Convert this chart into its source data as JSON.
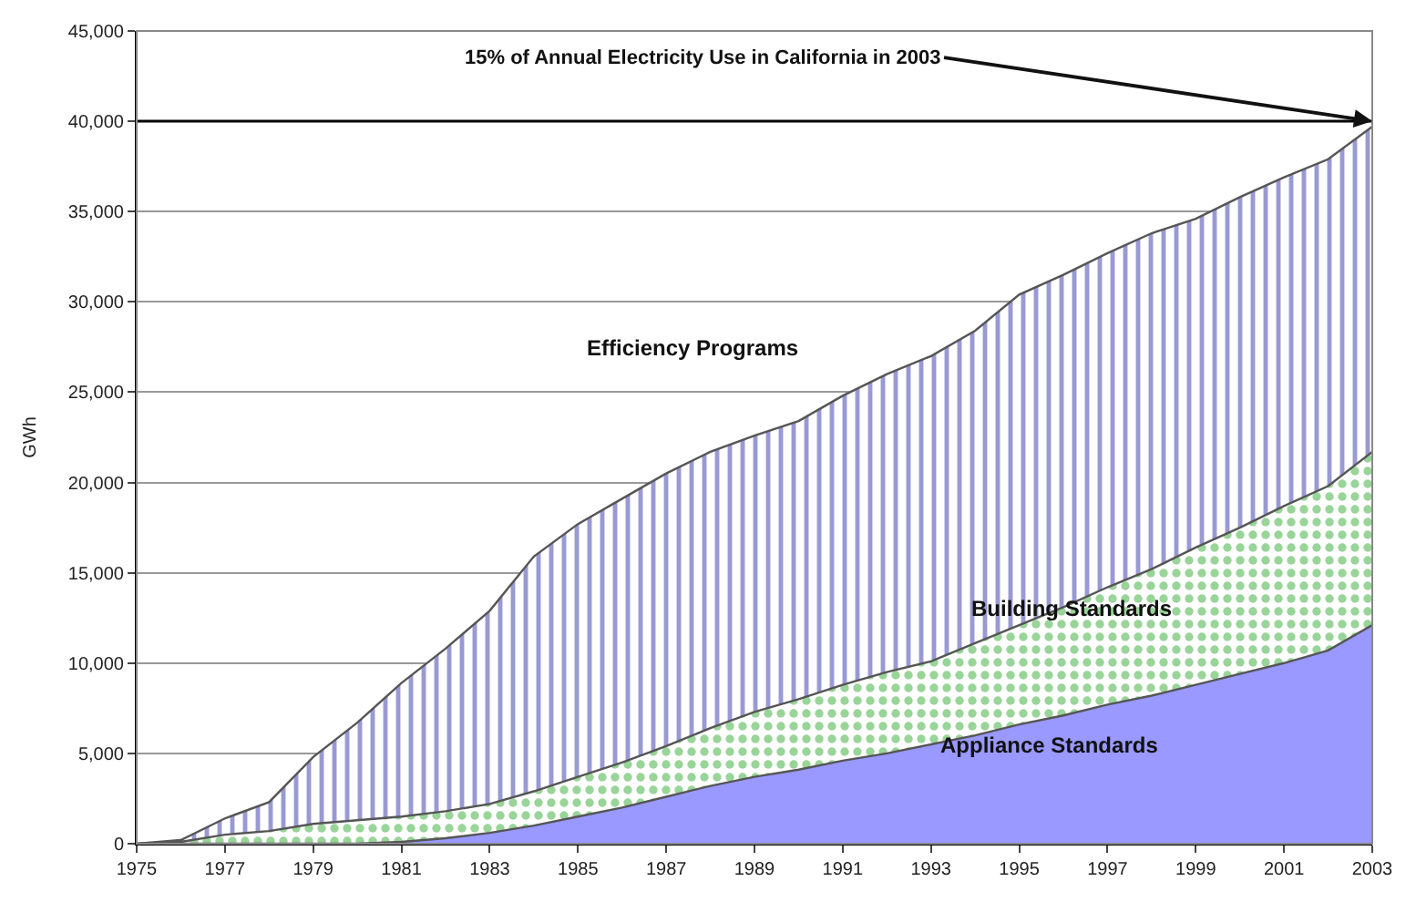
{
  "chart_data": {
    "type": "area",
    "stacked": true,
    "ylabel": "GWh",
    "x": [
      1975,
      1976,
      1977,
      1978,
      1979,
      1980,
      1981,
      1982,
      1983,
      1984,
      1985,
      1986,
      1987,
      1988,
      1989,
      1990,
      1991,
      1992,
      1993,
      1994,
      1995,
      1996,
      1997,
      1998,
      1999,
      2000,
      2001,
      2002,
      2003
    ],
    "series": [
      {
        "name": "Appliance Standards",
        "color": "#9999ff",
        "values": [
          0,
          0,
          0,
          0,
          0,
          0,
          100,
          300,
          600,
          1000,
          1500,
          2000,
          2600,
          3200,
          3700,
          4100,
          4600,
          5000,
          5500,
          6000,
          6600,
          7100,
          7700,
          8200,
          8800,
          9400,
          10000,
          10700,
          12100
        ]
      },
      {
        "name": "Building Standards",
        "color": "#33aa33",
        "values": [
          0,
          100,
          500,
          700,
          1100,
          1300,
          1400,
          1500,
          1600,
          1900,
          2200,
          2500,
          2800,
          3200,
          3600,
          3900,
          4200,
          4500,
          4600,
          5100,
          5500,
          6000,
          6500,
          7000,
          7600,
          8100,
          8700,
          9100,
          9600
        ]
      },
      {
        "name": "Efficiency Programs",
        "color": "#3333aa",
        "values": [
          0,
          100,
          900,
          1600,
          3700,
          5400,
          7400,
          9000,
          10700,
          13000,
          14000,
          14600,
          15100,
          15300,
          15300,
          15400,
          16000,
          16500,
          16900,
          17300,
          18300,
          18400,
          18500,
          18600,
          18200,
          18300,
          18200,
          18100,
          18000
        ]
      }
    ],
    "xlim": [
      1975,
      2003
    ],
    "xticks": [
      1975,
      1977,
      1979,
      1981,
      1983,
      1985,
      1987,
      1989,
      1991,
      1993,
      1995,
      1997,
      1999,
      2001,
      2003
    ],
    "ylim": [
      0,
      45000
    ],
    "yticks": [
      {
        "value": 0,
        "label": "0"
      },
      {
        "value": 5000,
        "label": "5,000"
      },
      {
        "value": 10000,
        "label": "10,000"
      },
      {
        "value": 15000,
        "label": "15,000"
      },
      {
        "value": 20000,
        "label": "20,000"
      },
      {
        "value": 25000,
        "label": "25,000"
      },
      {
        "value": 30000,
        "label": "30,000"
      },
      {
        "value": 35000,
        "label": "35,000"
      },
      {
        "value": 40000,
        "label": "40,000"
      },
      {
        "value": 45000,
        "label": "45,000"
      }
    ],
    "ref_lines": [
      {
        "axis": "y",
        "value": 40000,
        "color": "#000000"
      }
    ],
    "annotations": [
      {
        "text": "15% of Annual Electricity Use in California in 2003",
        "x": 2003,
        "y": 40000
      }
    ],
    "grid": "y",
    "legend": false
  }
}
